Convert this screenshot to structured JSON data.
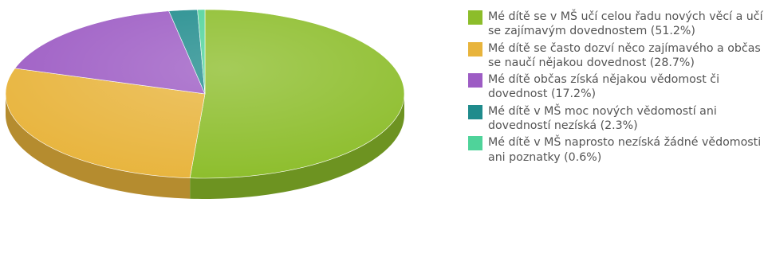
{
  "chart_data": {
    "type": "pie",
    "title": "",
    "legend_position": "right",
    "slices": [
      {
        "label": "Mé dítě se v MŠ učí celou řadu nových věcí a učí se zajímavým dovednostem (51.2%)",
        "value": 51.2,
        "color": "#8cbd2a"
      },
      {
        "label": "Mé dítě se často dozví něco zajímavého a občas se naučí nějakou dovednost (28.7%)",
        "value": 28.7,
        "color": "#e8b43c"
      },
      {
        "label": "Mé dítě občas získá nějakou vědomost či dovednost (17.2%)",
        "value": 17.2,
        "color": "#9d5cc4"
      },
      {
        "label": "Mé dítě v MŠ moc nových vědomostí ani dovedností nezíská (2.3%)",
        "value": 2.3,
        "color": "#1f8b8c"
      },
      {
        "label": "Mé dítě v MŠ naprosto nezíská žádné vědomosti ani poznatky (0.6%)",
        "value": 0.6,
        "color": "#4fd39a"
      }
    ]
  }
}
